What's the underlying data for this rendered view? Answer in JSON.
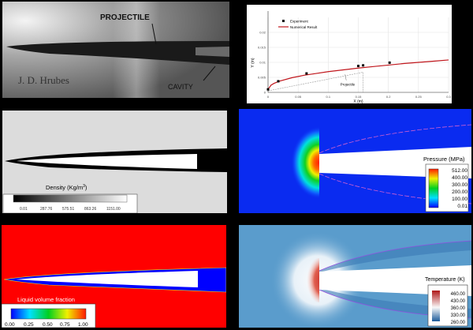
{
  "photo": {
    "label_projectile": "PROJECTILE",
    "label_cavity": "CAVITY",
    "credit": "J. D. Hrubes"
  },
  "chart_data": {
    "type": "line",
    "xlabel": "X (m)",
    "ylabel": "Y (m)",
    "xlim": [
      0,
      0.3
    ],
    "ylim": [
      0,
      0.025
    ],
    "xticks": [
      "0",
      "0.05",
      "0.1",
      "0.15",
      "0.2",
      "0.25",
      "0.3"
    ],
    "yticks": [
      "0",
      "0.005",
      "0.01",
      "0.015",
      "0.02"
    ],
    "grid": true,
    "legend_position": "top-left",
    "series": [
      {
        "name": "Experiment",
        "kind": "scatter",
        "color": "#000000",
        "x": [
          0.0,
          0.017,
          0.064,
          0.15,
          0.158,
          0.202
        ],
        "y": [
          0.001,
          0.0037,
          0.0063,
          0.0088,
          0.009,
          0.0099
        ]
      },
      {
        "name": "Numerical Result",
        "kind": "line",
        "color": "#c0161c",
        "x": [
          0.0,
          0.005,
          0.01,
          0.02,
          0.04,
          0.06,
          0.08,
          0.1,
          0.125,
          0.15,
          0.175,
          0.2,
          0.225,
          0.25,
          0.275,
          0.3
        ],
        "y": [
          0.001,
          0.0024,
          0.003,
          0.0038,
          0.0049,
          0.0057,
          0.0063,
          0.0069,
          0.0075,
          0.0081,
          0.0086,
          0.0091,
          0.0096,
          0.01,
          0.0104,
          0.0108
        ]
      }
    ],
    "annotation": "Projectile"
  },
  "density": {
    "title": "Density (Kg/m",
    "title_sup": "3",
    "title_end": ")",
    "ticks": [
      "0.01",
      "287.76",
      "575.51",
      "863.26",
      "1151.00"
    ]
  },
  "pressure": {
    "title": "Pressure (MPa)",
    "ticks": [
      "512.00",
      "400.00",
      "300.00",
      "200.00",
      "100.00",
      "0.01"
    ]
  },
  "liquid": {
    "title": "Liquid volume fraction",
    "ticks": [
      "0.00",
      "0.25",
      "0.50",
      "0.75",
      "1.00"
    ]
  },
  "temperature": {
    "title": "Temperature (K)",
    "ticks": [
      "460.00",
      "430.00",
      "360.00",
      "330.00",
      "260.00"
    ]
  }
}
